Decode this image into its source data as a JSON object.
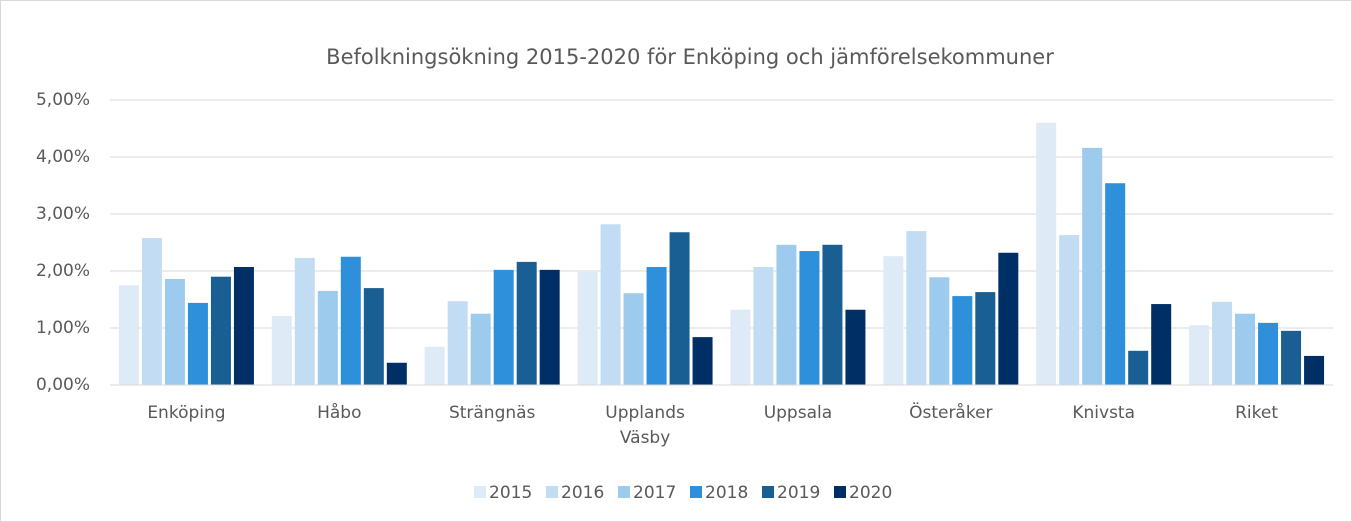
{
  "chart_data": {
    "type": "bar",
    "title": "Befolkningsökning 2015-2020 för Enköping och jämförelsekommuner",
    "categories": [
      "Enköping",
      "Håbo",
      "Strängnäs",
      "Upplands Väsby",
      "Uppsala",
      "Österåker",
      "Knivsta",
      "Riket"
    ],
    "series": [
      {
        "name": "2015",
        "color": "#deebf7",
        "values": [
          1.75,
          1.21,
          0.67,
          2.0,
          1.32,
          2.26,
          4.6,
          1.05
        ]
      },
      {
        "name": "2016",
        "color": "#c2ddf3",
        "values": [
          2.58,
          2.23,
          1.47,
          2.82,
          2.07,
          2.7,
          2.63,
          1.46
        ]
      },
      {
        "name": "2017",
        "color": "#9dcbed",
        "values": [
          1.86,
          1.65,
          1.25,
          1.61,
          2.46,
          1.89,
          4.16,
          1.25
        ]
      },
      {
        "name": "2018",
        "color": "#2e8fdb",
        "values": [
          1.44,
          2.25,
          2.02,
          2.07,
          2.35,
          1.56,
          3.54,
          1.09
        ]
      },
      {
        "name": "2019",
        "color": "#1a5f94",
        "values": [
          1.9,
          1.7,
          2.16,
          2.68,
          2.46,
          1.63,
          0.6,
          0.95
        ]
      },
      {
        "name": "2020",
        "color": "#002f66",
        "values": [
          2.07,
          0.39,
          2.02,
          0.84,
          1.32,
          2.32,
          1.42,
          0.51
        ]
      }
    ],
    "ylim": [
      0,
      5
    ],
    "yticks": [
      {
        "value": 0,
        "label": "0,00%"
      },
      {
        "value": 1,
        "label": "1,00%"
      },
      {
        "value": 2,
        "label": "2,00%"
      },
      {
        "value": 3,
        "label": "3,00%"
      },
      {
        "value": 4,
        "label": "4,00%"
      },
      {
        "value": 5,
        "label": "5,00%"
      }
    ],
    "grid": true,
    "legend": "bottom"
  }
}
